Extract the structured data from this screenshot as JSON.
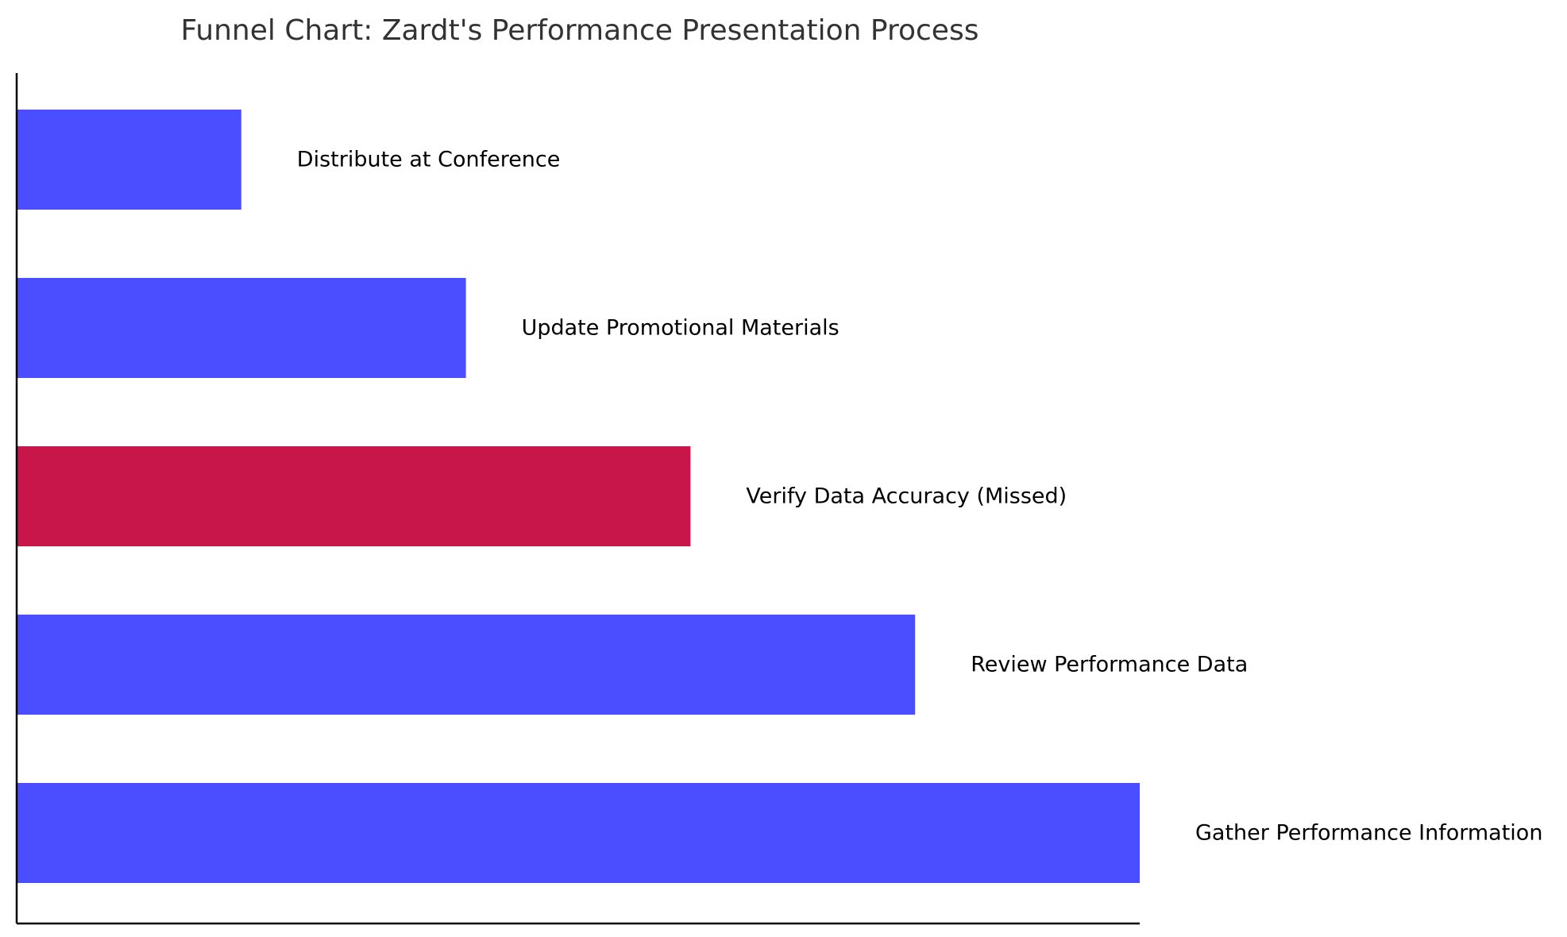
{
  "chart_data": {
    "type": "bar",
    "orientation": "horizontal",
    "title": "Funnel Chart: Zardt's Performance Presentation Process",
    "xlabel": "",
    "ylabel": "",
    "grid": false,
    "categories": [
      "Gather Performance Information",
      "Review Performance Data",
      "Verify Data Accuracy (Missed)",
      "Update Promotional Materials",
      "Distribute at Conference"
    ],
    "values": [
      5,
      4,
      3,
      2,
      1
    ],
    "xlim": [
      0,
      5
    ],
    "colors": [
      "#4b4eff",
      "#4b4eff",
      "#c8164b",
      "#4b4eff",
      "#4b4eff"
    ],
    "highlight_category": "Verify Data Accuracy (Missed)"
  }
}
